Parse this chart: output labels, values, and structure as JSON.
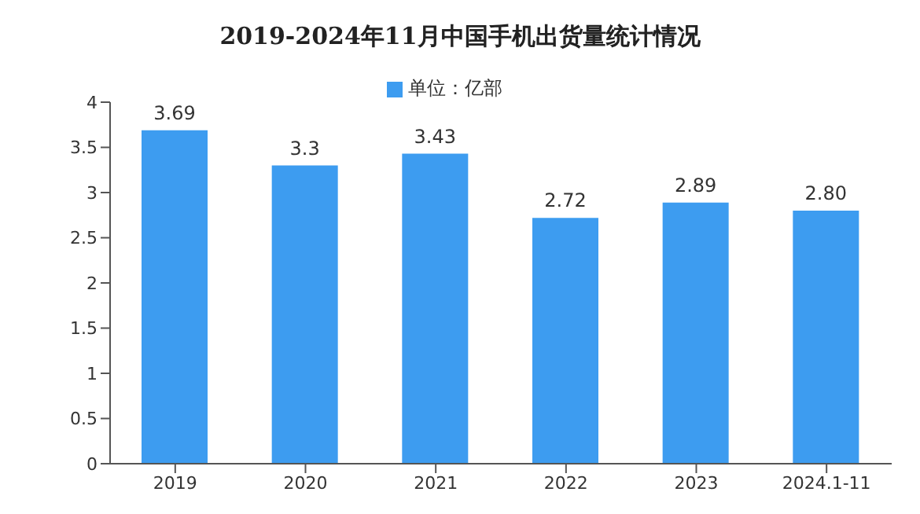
{
  "chart_data": {
    "type": "bar",
    "title": "2019-2024年11月中国手机出货量统计情况",
    "categories": [
      "2019",
      "2020",
      "2021",
      "2022",
      "2023",
      "2024.1-11"
    ],
    "series": [
      {
        "name": "单位：亿部",
        "color": "#3d9cf0",
        "values": [
          3.69,
          3.3,
          3.43,
          2.72,
          2.89,
          2.8
        ],
        "value_labels": [
          "3.69",
          "3.3",
          "3.43",
          "2.72",
          "2.89",
          "2.80"
        ]
      }
    ],
    "ylim": [
      0,
      4
    ],
    "yticks": [
      0,
      0.5,
      1,
      1.5,
      2,
      2.5,
      3,
      3.5,
      4
    ],
    "grid": false,
    "legend": "top"
  }
}
